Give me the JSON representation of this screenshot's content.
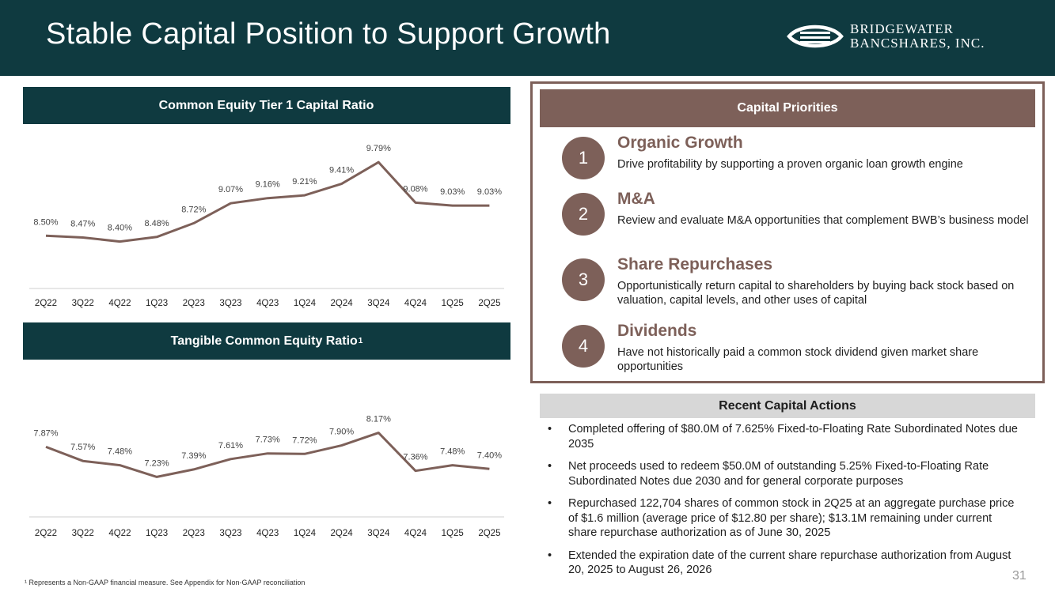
{
  "header": {
    "title": "Stable Capital Position to Support Growth",
    "logo_line1": "BRIDGEWATER",
    "logo_line2": "BANCSHARES, INC."
  },
  "colors": {
    "header_bg": "#0f3a40",
    "accent": "#7d6059",
    "line": "#7d6059",
    "actions_bg": "#d7d7d7"
  },
  "chart_data": [
    {
      "type": "line",
      "title": "Common Equity Tier 1 Capital Ratio",
      "title_sup": "",
      "categories": [
        "2Q22",
        "3Q22",
        "4Q22",
        "1Q23",
        "2Q23",
        "3Q23",
        "4Q23",
        "1Q24",
        "2Q24",
        "3Q24",
        "4Q24",
        "1Q25",
        "2Q25"
      ],
      "values": [
        8.5,
        8.47,
        8.4,
        8.48,
        8.72,
        9.07,
        9.16,
        9.21,
        9.41,
        9.79,
        9.08,
        9.03,
        9.03
      ],
      "labels": [
        "8.50%",
        "8.47%",
        "8.40%",
        "8.48%",
        "8.72%",
        "9.07%",
        "9.16%",
        "9.21%",
        "9.41%",
        "9.79%",
        "9.08%",
        "9.03%",
        "9.03%"
      ],
      "ylim": [
        8.2,
        10.0
      ],
      "grid": false,
      "xlabel": "",
      "ylabel": ""
    },
    {
      "type": "line",
      "title": "Tangible Common Equity Ratio",
      "title_sup": "1",
      "categories": [
        "2Q22",
        "3Q22",
        "4Q22",
        "1Q23",
        "2Q23",
        "3Q23",
        "4Q23",
        "1Q24",
        "2Q24",
        "3Q24",
        "4Q24",
        "1Q25",
        "2Q25"
      ],
      "values": [
        7.87,
        7.57,
        7.48,
        7.23,
        7.39,
        7.61,
        7.73,
        7.72,
        7.9,
        8.17,
        7.36,
        7.48,
        7.4
      ],
      "labels": [
        "7.87%",
        "7.57%",
        "7.48%",
        "7.23%",
        "7.39%",
        "7.61%",
        "7.73%",
        "7.72%",
        "7.90%",
        "8.17%",
        "7.36%",
        "7.48%",
        "7.40%"
      ],
      "ylim": [
        6.9,
        8.5
      ],
      "grid": false,
      "xlabel": "",
      "ylabel": ""
    }
  ],
  "priorities": {
    "heading": "Capital Priorities",
    "items": [
      {
        "num": "1",
        "title": "Organic Growth",
        "desc": "Drive profitability by supporting a proven organic loan growth engine"
      },
      {
        "num": "2",
        "title": "M&A",
        "desc": "Review and evaluate M&A opportunities that complement BWB’s business model"
      },
      {
        "num": "3",
        "title": "Share Repurchases",
        "desc": "Opportunistically return capital to shareholders by buying back stock based on valuation, capital levels, and other uses of capital"
      },
      {
        "num": "4",
        "title": "Dividends",
        "desc": "Have not historically paid a common stock dividend given market share opportunities"
      }
    ]
  },
  "actions": {
    "heading": "Recent Capital Actions",
    "bullet": "•",
    "items": [
      "Completed offering of $80.0M of 7.625% Fixed-to-Floating Rate Subordinated Notes due 2035",
      "Net proceeds used to redeem $50.0M of outstanding 5.25% Fixed-to-Floating Rate Subordinated Notes due 2030 and for general corporate purposes",
      "Repurchased 122,704 shares of common stock in 2Q25 at an aggregate purchase price of $1.6 million (average price of $12.80 per share); $13.1M remaining under current share repurchase authorization as of June 30, 2025",
      "Extended the expiration date of the current share repurchase authorization from August 20, 2025 to August 26, 2026"
    ]
  },
  "footnote": "¹ Represents a Non-GAAP financial measure. See Appendix for Non-GAAP reconciliation",
  "page_number": "31"
}
